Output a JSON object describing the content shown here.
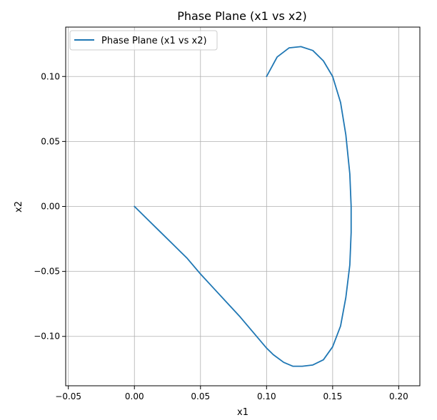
{
  "chart_data": {
    "type": "line",
    "title": "Phase Plane (x1 vs x2)",
    "xlabel": "x1",
    "ylabel": "x2",
    "xlim": [
      -0.052,
      0.216
    ],
    "ylim": [
      -0.138,
      0.138
    ],
    "xticks": [
      -0.05,
      0.0,
      0.05,
      0.1,
      0.15,
      0.2
    ],
    "xtick_labels": [
      "−0.05",
      "0.00",
      "0.05",
      "0.10",
      "0.15",
      "0.20"
    ],
    "yticks": [
      -0.1,
      -0.05,
      0.0,
      0.05,
      0.1
    ],
    "ytick_labels": [
      "−0.10",
      "−0.05",
      "0.00",
      "0.05",
      "0.10"
    ],
    "grid": true,
    "legend_position": "upper-left",
    "series": [
      {
        "name": "Phase Plane (x1 vs x2)",
        "color": "#1f77b4",
        "x": [
          0.1,
          0.108,
          0.117,
          0.126,
          0.135,
          0.143,
          0.15,
          0.156,
          0.16,
          0.163,
          0.164,
          0.164,
          0.163,
          0.16,
          0.156,
          0.15,
          0.143,
          0.135,
          0.127,
          0.12,
          0.113,
          0.105,
          0.1,
          0.09,
          0.08,
          0.07,
          0.06,
          0.05,
          0.04,
          0.03,
          0.02,
          0.01,
          0.0
        ],
        "y": [
          0.1,
          0.115,
          0.122,
          0.123,
          0.12,
          0.112,
          0.1,
          0.08,
          0.055,
          0.025,
          0.0,
          -0.02,
          -0.045,
          -0.07,
          -0.092,
          -0.108,
          -0.118,
          -0.122,
          -0.123,
          -0.123,
          -0.12,
          -0.114,
          -0.109,
          -0.097,
          -0.085,
          -0.074,
          -0.063,
          -0.052,
          -0.04,
          -0.03,
          -0.02,
          -0.01,
          0.0
        ]
      }
    ]
  }
}
